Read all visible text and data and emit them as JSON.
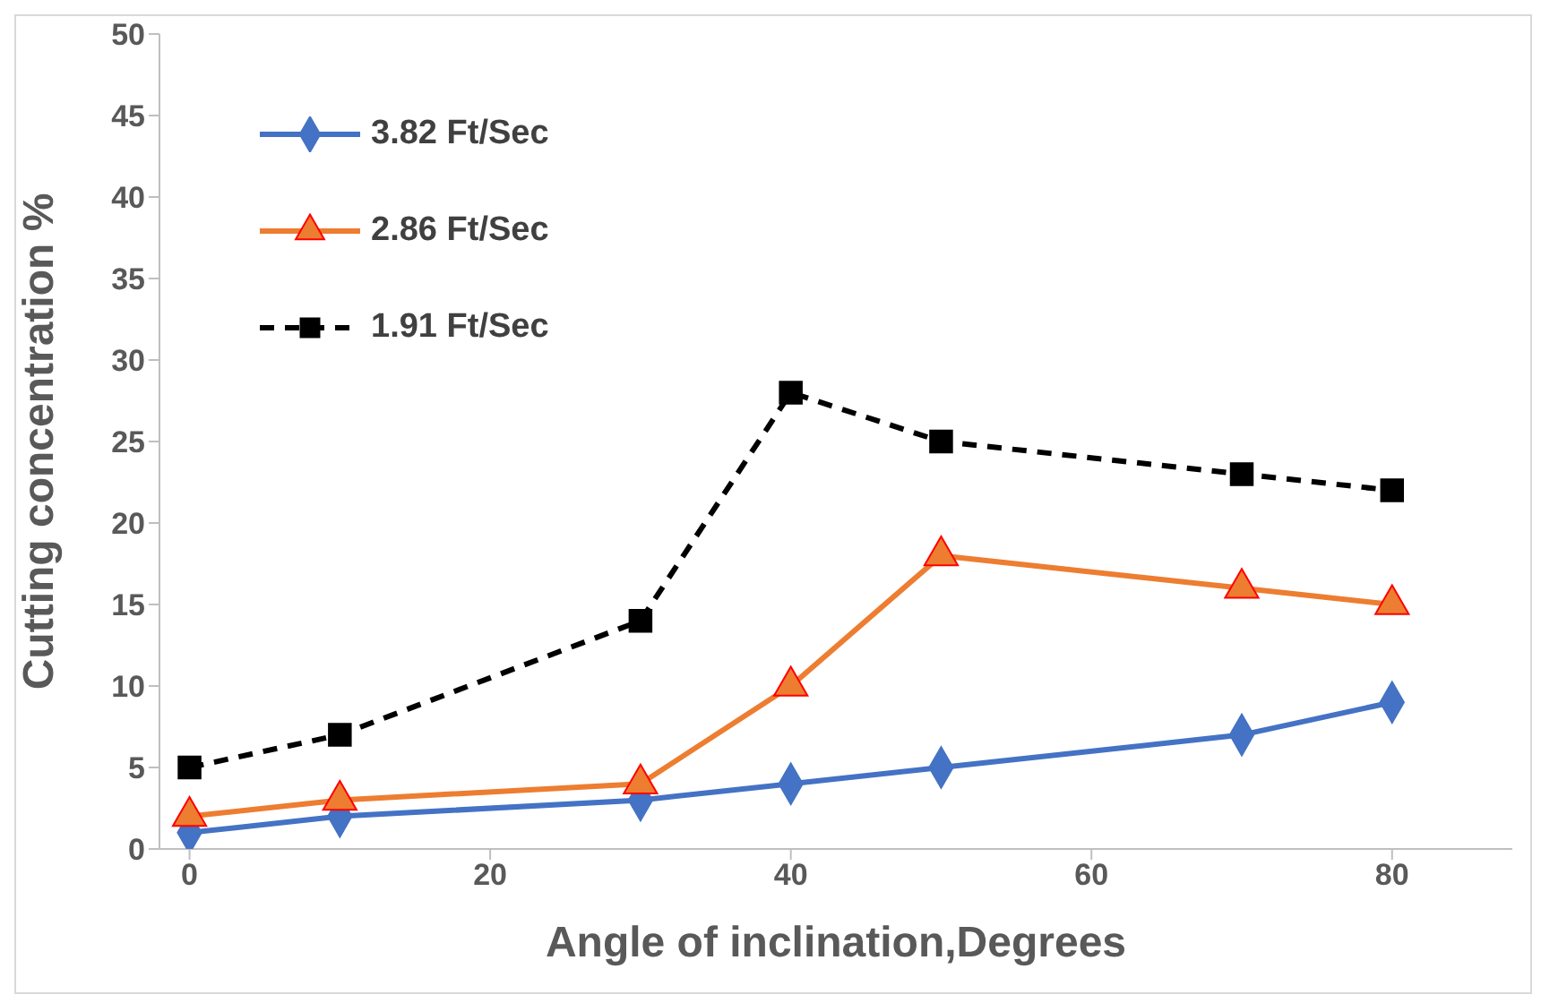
{
  "chart_data": {
    "type": "line",
    "xlabel": "Angle of inclination,Degrees",
    "ylabel": "Cutting concentration %",
    "x": [
      0,
      10,
      30,
      40,
      50,
      70,
      80
    ],
    "series": [
      {
        "name": "3.82 Ft/Sec",
        "color": "#4472c4",
        "values": [
          1,
          2,
          3,
          4,
          5,
          7,
          9
        ],
        "marker": "diamond",
        "line_style": "solid"
      },
      {
        "name": "2.86 Ft/Sec",
        "color": "#ed7d31",
        "values": [
          2,
          3,
          4,
          10,
          18,
          16,
          15
        ],
        "marker": "triangle",
        "line_style": "solid"
      },
      {
        "name": "1.91 Ft/Sec",
        "color": "#000000",
        "values": [
          5,
          7,
          14,
          28,
          25,
          23,
          22
        ],
        "marker": "square",
        "line_style": "dashed"
      }
    ],
    "xlim": [
      -2,
      88
    ],
    "xticks": [
      0,
      20,
      40,
      60,
      80
    ],
    "ylim": [
      0,
      50
    ],
    "yticks": [
      0,
      5,
      10,
      15,
      20,
      25,
      30,
      35,
      40,
      45,
      50
    ],
    "grid": false,
    "legend": "top left"
  }
}
